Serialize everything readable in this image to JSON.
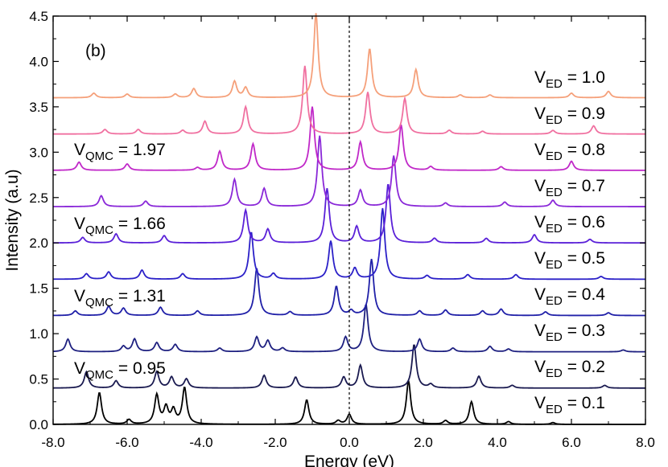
{
  "chart_data": {
    "type": "line",
    "panel_label": "(b)",
    "xlabel": "Energy (eV)",
    "ylabel": "Intensity (a.u)",
    "xlim": [
      -8.0,
      8.0
    ],
    "ylim": [
      0.0,
      4.5
    ],
    "xticks": [
      "-8.0",
      "-6.0",
      "-4.0",
      "-2.0",
      "0.0",
      "2.0",
      "4.0",
      "6.0",
      "8.0"
    ],
    "yticks": [
      "0.0",
      "0.5",
      "1.0",
      "1.5",
      "2.0",
      "2.5",
      "3.0",
      "3.5",
      "4.0",
      "4.5"
    ],
    "reference_line": {
      "x": 0.0,
      "style": "dotted"
    },
    "series": [
      {
        "name": "V_ED = 0.1",
        "color": "#000000",
        "offset": 0.0,
        "peaks": [
          [
            -6.75,
            0.35
          ],
          [
            -5.95,
            0.05
          ],
          [
            -5.2,
            0.32
          ],
          [
            -4.95,
            0.18
          ],
          [
            -4.75,
            0.15
          ],
          [
            -4.45,
            0.4
          ],
          [
            -1.15,
            0.27
          ],
          [
            -0.3,
            0.04
          ],
          [
            0.0,
            0.11
          ],
          [
            1.6,
            0.48
          ],
          [
            2.6,
            0.04
          ],
          [
            3.3,
            0.25
          ],
          [
            4.3,
            0.03
          ],
          [
            5.5,
            0.02
          ]
        ]
      },
      {
        "name": "V_ED = 0.2",
        "color": "#1a1a50",
        "offset": 0.4,
        "peaks": [
          [
            -7.1,
            0.18
          ],
          [
            -6.3,
            0.08
          ],
          [
            -5.2,
            0.18
          ],
          [
            -4.8,
            0.12
          ],
          [
            -4.4,
            0.1
          ],
          [
            -2.3,
            0.14
          ],
          [
            -1.45,
            0.12
          ],
          [
            -0.15,
            0.12
          ],
          [
            0.3,
            0.25
          ],
          [
            1.75,
            0.48
          ],
          [
            2.2,
            0.04
          ],
          [
            3.5,
            0.13
          ],
          [
            4.4,
            0.03
          ],
          [
            6.9,
            0.03
          ]
        ]
      },
      {
        "name": "V_ED = 0.3",
        "color": "#1e2080",
        "offset": 0.8,
        "peaks": [
          [
            -7.6,
            0.14
          ],
          [
            -6.1,
            0.06
          ],
          [
            -5.8,
            0.14
          ],
          [
            -5.2,
            0.1
          ],
          [
            -4.7,
            0.08
          ],
          [
            -3.5,
            0.04
          ],
          [
            -2.5,
            0.16
          ],
          [
            -2.2,
            0.12
          ],
          [
            -1.8,
            0.04
          ],
          [
            -0.1,
            0.16
          ],
          [
            0.45,
            0.52
          ],
          [
            1.9,
            0.14
          ],
          [
            2.8,
            0.04
          ],
          [
            3.8,
            0.06
          ],
          [
            4.3,
            0.03
          ],
          [
            7.4,
            0.02
          ]
        ]
      },
      {
        "name": "V_ED = 0.4",
        "color": "#2020a8",
        "offset": 1.2,
        "peaks": [
          [
            -7.4,
            0.05
          ],
          [
            -6.5,
            0.1
          ],
          [
            -6.1,
            0.08
          ],
          [
            -5.1,
            0.09
          ],
          [
            -4.1,
            0.05
          ],
          [
            -2.5,
            0.52
          ],
          [
            -1.6,
            0.04
          ],
          [
            -0.35,
            0.32
          ],
          [
            0.05,
            0.05
          ],
          [
            0.6,
            0.62
          ],
          [
            1.9,
            0.05
          ],
          [
            2.6,
            0.06
          ],
          [
            3.6,
            0.05
          ],
          [
            4.1,
            0.07
          ],
          [
            5.3,
            0.04
          ],
          [
            7.0,
            0.03
          ]
        ]
      },
      {
        "name": "V_ED = 0.5",
        "color": "#2b20c8",
        "offset": 1.6,
        "peaks": [
          [
            -7.1,
            0.06
          ],
          [
            -6.5,
            0.08
          ],
          [
            -5.6,
            0.1
          ],
          [
            -4.5,
            0.06
          ],
          [
            -2.65,
            0.52
          ],
          [
            -2.05,
            0.06
          ],
          [
            -0.5,
            0.42
          ],
          [
            0.15,
            0.12
          ],
          [
            0.9,
            0.78
          ],
          [
            2.1,
            0.04
          ],
          [
            3.2,
            0.05
          ],
          [
            4.5,
            0.05
          ],
          [
            6.8,
            0.03
          ]
        ]
      },
      {
        "name": "V_ED = 0.6",
        "color": "#5a20d8",
        "offset": 2.0,
        "peaks": [
          [
            -7.2,
            0.06
          ],
          [
            -6.3,
            0.1
          ],
          [
            -5.0,
            0.08
          ],
          [
            -2.8,
            0.36
          ],
          [
            -2.2,
            0.15
          ],
          [
            -0.6,
            0.6
          ],
          [
            0.2,
            0.18
          ],
          [
            1.05,
            0.65
          ],
          [
            2.3,
            0.05
          ],
          [
            3.7,
            0.05
          ],
          [
            5.0,
            0.09
          ],
          [
            6.5,
            0.04
          ]
        ]
      },
      {
        "name": "V_ED = 0.7",
        "color": "#8a28d8",
        "offset": 2.4,
        "peaks": [
          [
            -6.7,
            0.12
          ],
          [
            -5.5,
            0.06
          ],
          [
            -3.1,
            0.3
          ],
          [
            -2.3,
            0.2
          ],
          [
            -0.8,
            0.78
          ],
          [
            0.3,
            0.18
          ],
          [
            1.2,
            0.56
          ],
          [
            2.6,
            0.04
          ],
          [
            4.2,
            0.05
          ],
          [
            5.5,
            0.07
          ]
        ]
      },
      {
        "name": "V_ED = 0.8",
        "color": "#c028c8",
        "offset": 2.8,
        "peaks": [
          [
            -7.3,
            0.09
          ],
          [
            -6.0,
            0.07
          ],
          [
            -4.1,
            0.03
          ],
          [
            -3.5,
            0.21
          ],
          [
            -2.6,
            0.29
          ],
          [
            -1.0,
            0.7
          ],
          [
            0.3,
            0.31
          ],
          [
            1.4,
            0.5
          ],
          [
            2.2,
            0.04
          ],
          [
            4.1,
            0.04
          ],
          [
            6.0,
            0.1
          ]
        ]
      },
      {
        "name": "V_ED = 0.9",
        "color": "#f070a0",
        "offset": 3.2,
        "peaks": [
          [
            -6.6,
            0.05
          ],
          [
            -5.7,
            0.05
          ],
          [
            -4.5,
            0.04
          ],
          [
            -3.9,
            0.14
          ],
          [
            -2.8,
            0.3
          ],
          [
            -1.2,
            0.75
          ],
          [
            0.5,
            0.46
          ],
          [
            1.5,
            0.39
          ],
          [
            2.7,
            0.04
          ],
          [
            3.6,
            0.03
          ],
          [
            5.5,
            0.04
          ],
          [
            6.6,
            0.09
          ]
        ]
      },
      {
        "name": "V_ED = 1.0",
        "color": "#f5a07a",
        "offset": 3.6,
        "peaks": [
          [
            -6.9,
            0.05
          ],
          [
            -6.0,
            0.04
          ],
          [
            -4.7,
            0.04
          ],
          [
            -4.2,
            0.1
          ],
          [
            -3.1,
            0.18
          ],
          [
            -2.8,
            0.11
          ],
          [
            -0.9,
            0.93
          ],
          [
            0.55,
            0.54
          ],
          [
            1.8,
            0.31
          ],
          [
            3.0,
            0.03
          ],
          [
            3.8,
            0.03
          ],
          [
            6.0,
            0.05
          ],
          [
            7.0,
            0.07
          ]
        ]
      }
    ],
    "annotations": [
      {
        "id": "q1",
        "prefix": "V",
        "sub": "QMC",
        "value": " = 1.97"
      },
      {
        "id": "q2",
        "prefix": "V",
        "sub": "QMC",
        "value": " = 1.66"
      },
      {
        "id": "q3",
        "prefix": "V",
        "sub": "QMC",
        "value": " = 1.31"
      },
      {
        "id": "q4",
        "prefix": "V",
        "sub": "QMC",
        "value": " = 0.95"
      }
    ],
    "series_labels": [
      {
        "prefix": "V",
        "sub": "ED",
        "value": " = 1.0"
      },
      {
        "prefix": "V",
        "sub": "ED",
        "value": " = 0.9"
      },
      {
        "prefix": "V",
        "sub": "ED",
        "value": " = 0.8"
      },
      {
        "prefix": "V",
        "sub": "ED",
        "value": " = 0.7"
      },
      {
        "prefix": "V",
        "sub": "ED",
        "value": " = 0.6"
      },
      {
        "prefix": "V",
        "sub": "ED",
        "value": " = 0.5"
      },
      {
        "prefix": "V",
        "sub": "ED",
        "value": " = 0.4"
      },
      {
        "prefix": "V",
        "sub": "ED",
        "value": " = 0.3"
      },
      {
        "prefix": "V",
        "sub": "ED",
        "value": " = 0.2"
      },
      {
        "prefix": "V",
        "sub": "ED",
        "value": " = 0.1"
      }
    ]
  }
}
